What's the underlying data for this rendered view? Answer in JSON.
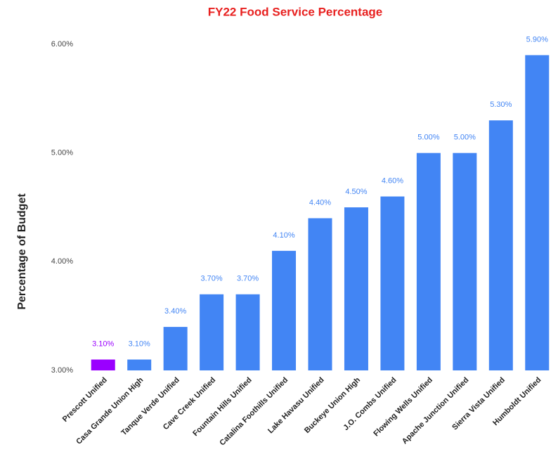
{
  "chart_data": {
    "type": "bar",
    "title": "FY22 Food Service Percentage",
    "y_label": "Percentage of Budget",
    "categories": [
      "Prescott Unified",
      "Casa Grande Union High",
      "Tanque Verde Unified",
      "Cave Creek Unified",
      "Fountain Hills Unified",
      "Catalina Foothills Unified",
      "Lake Havasu Unified",
      "Buckeye Union High",
      "J.O. Combs Unified",
      "Flowing Wells Unified",
      "Apache Junction Unified",
      "Sierra Vista Unified",
      "Humboldt Unified"
    ],
    "values": [
      3.1,
      3.1,
      3.4,
      3.7,
      3.7,
      4.1,
      4.4,
      4.5,
      4.6,
      5.0,
      5.0,
      5.3,
      5.9
    ],
    "value_labels": [
      "3.10%",
      "3.10%",
      "3.40%",
      "3.70%",
      "3.70%",
      "4.10%",
      "4.40%",
      "4.50%",
      "4.60%",
      "5.00%",
      "5.00%",
      "5.30%",
      "5.90%"
    ],
    "colors": [
      "#9a00ff",
      "#4285f4",
      "#4285f4",
      "#4285f4",
      "#4285f4",
      "#4285f4",
      "#4285f4",
      "#4285f4",
      "#4285f4",
      "#4285f4",
      "#4285f4",
      "#4285f4",
      "#4285f4"
    ],
    "ylim": [
      3,
      6
    ],
    "yticks": [
      {
        "value": 3,
        "label": "3.00%"
      },
      {
        "value": 4,
        "label": "4.00%"
      },
      {
        "value": 5,
        "label": "5.00%"
      },
      {
        "value": 6,
        "label": "6.00%"
      }
    ],
    "grid": false
  }
}
